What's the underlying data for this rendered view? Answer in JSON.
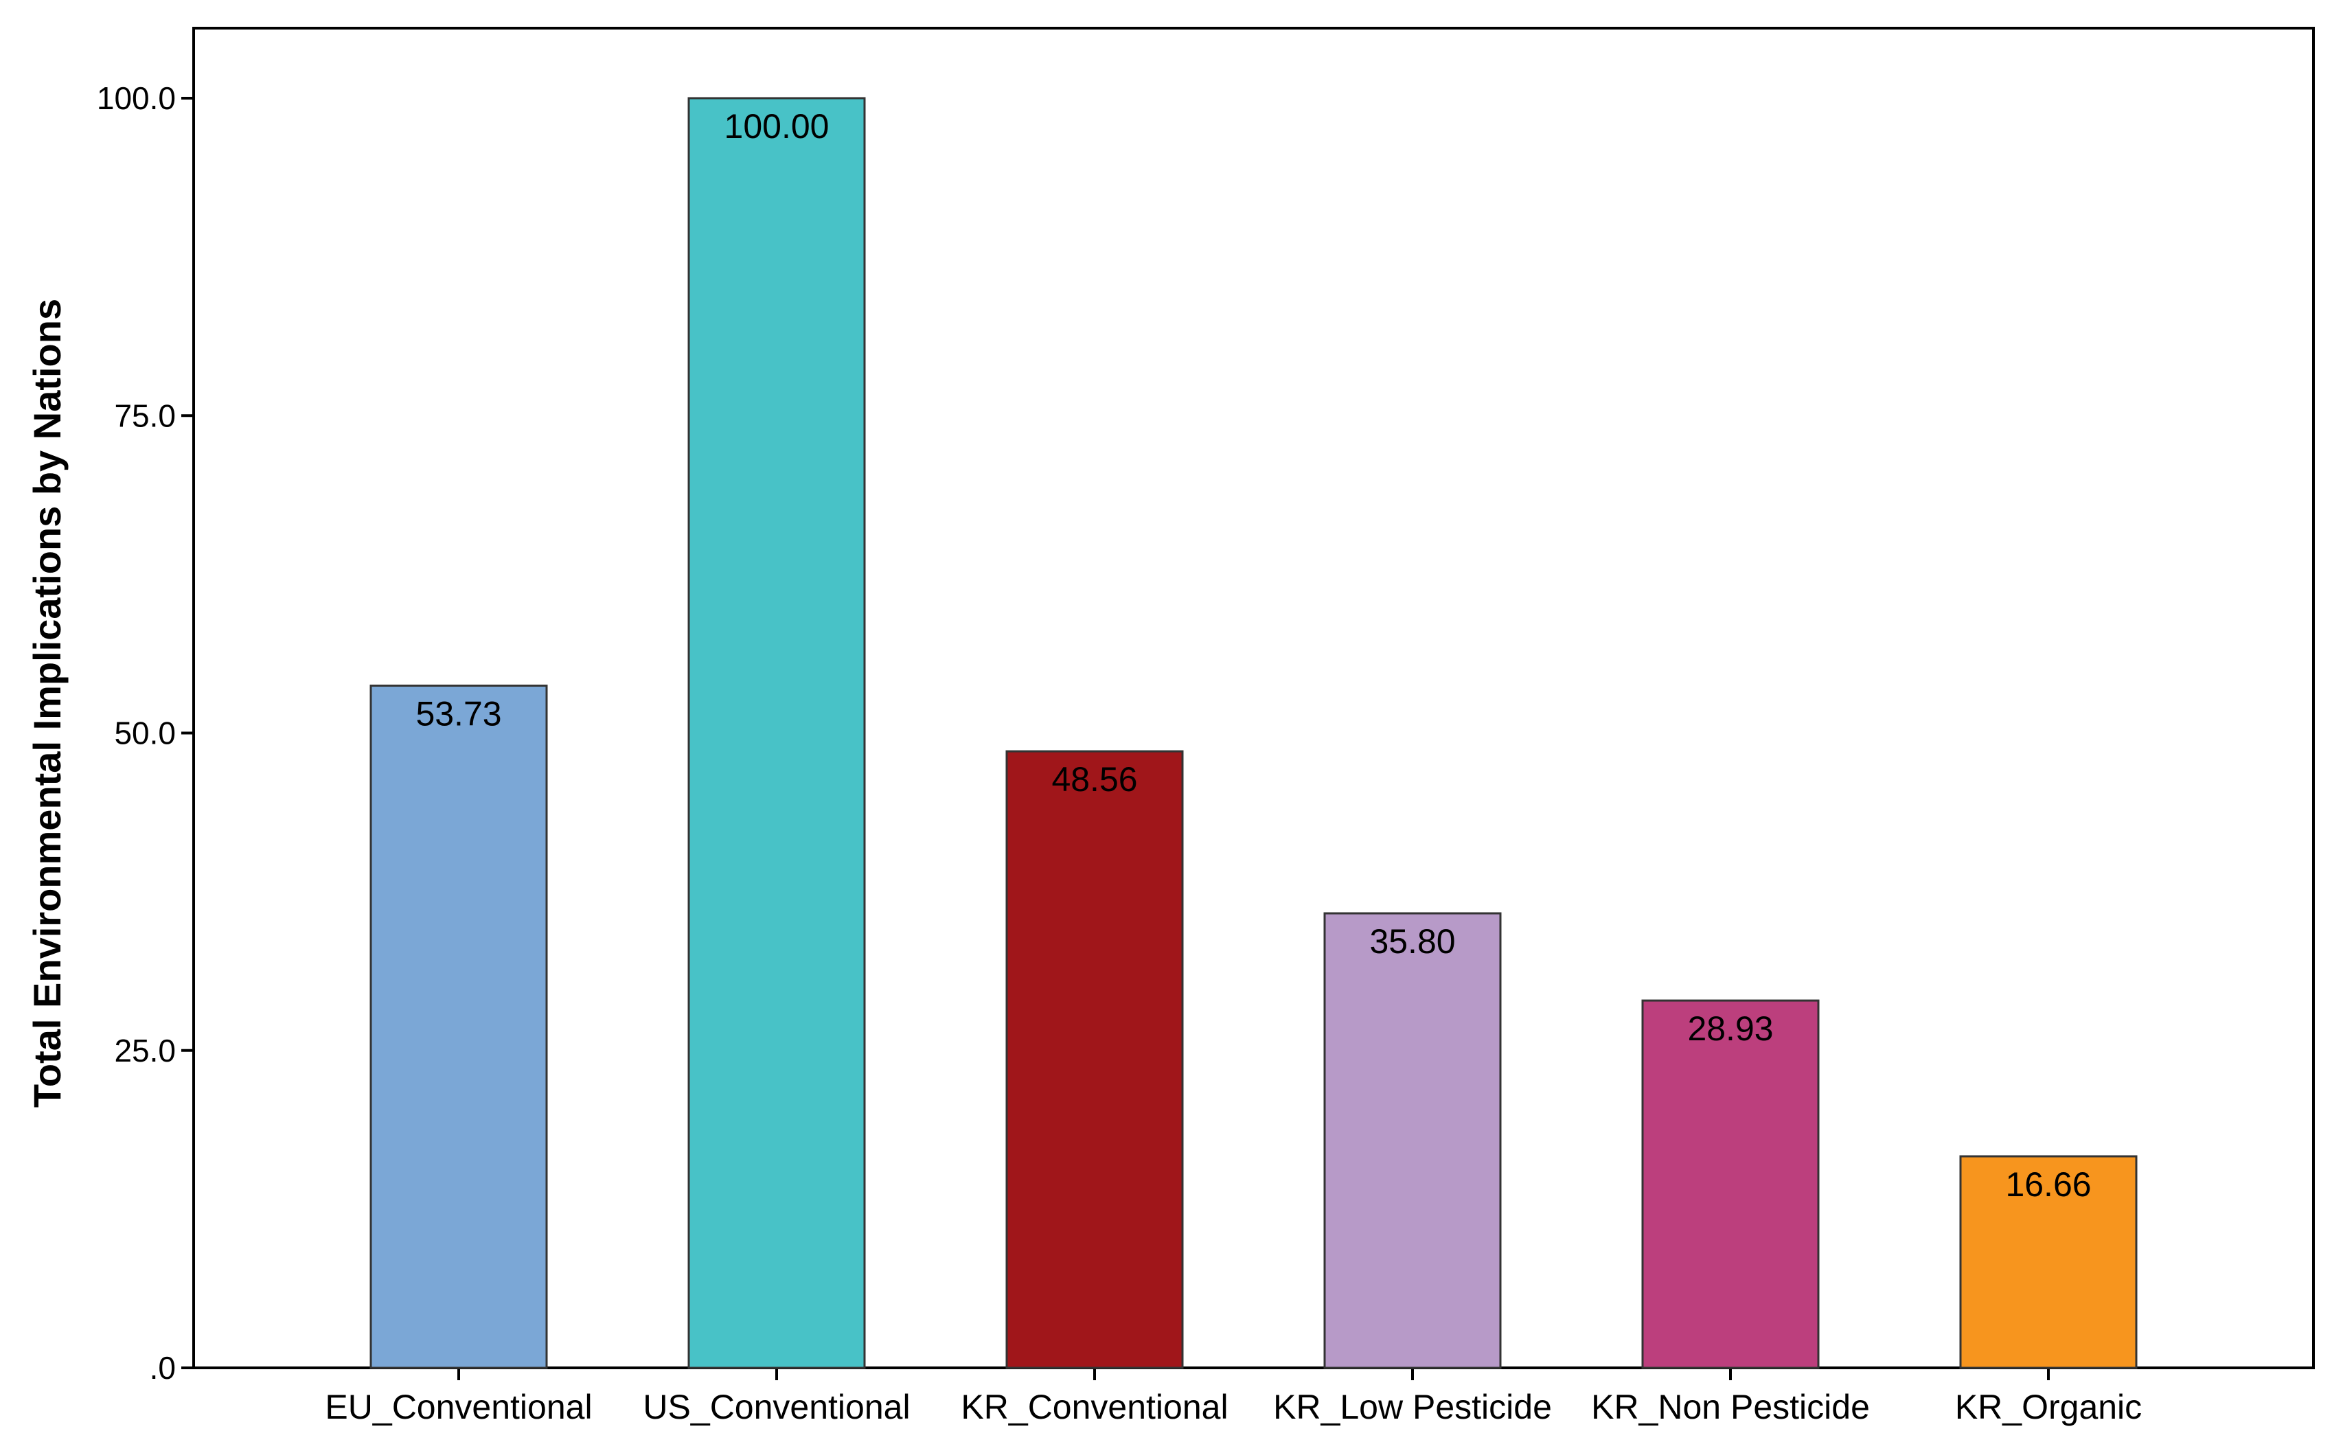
{
  "chart_data": {
    "type": "bar",
    "title": "",
    "xlabel": "",
    "ylabel": "Total Environmental Implications by Nations",
    "ylim": [
      0,
      105
    ],
    "yticks": [
      {
        "value": 0,
        "label": ".0"
      },
      {
        "value": 25,
        "label": "25.0"
      },
      {
        "value": 50,
        "label": "50.0"
      },
      {
        "value": 75,
        "label": "75.0"
      },
      {
        "value": 100,
        "label": "100.0"
      }
    ],
    "categories": [
      "EU_Conventional",
      "US_Conventional",
      "KR_Conventional",
      "KR_Low Pesticide",
      "KR_Non Pesticide",
      "KR_Organic"
    ],
    "values": [
      53.73,
      100.0,
      48.56,
      35.8,
      28.93,
      16.66
    ],
    "value_labels": [
      "53.73",
      "100.00",
      "48.56",
      "35.80",
      "28.93",
      "16.66"
    ],
    "colors": [
      "#7BA7D6",
      "#48C2C7",
      "#A0161A",
      "#B79AC8",
      "#BC3F7D",
      "#F7951E"
    ],
    "grid": false,
    "legend": "none"
  }
}
